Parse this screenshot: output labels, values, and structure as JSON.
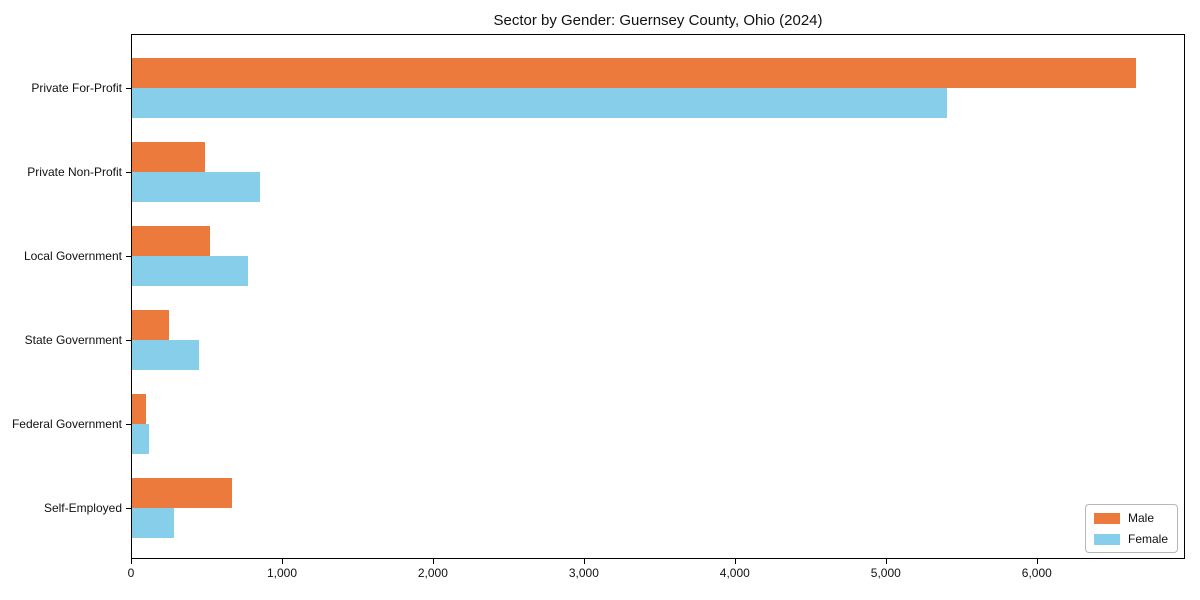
{
  "chart_data": {
    "type": "bar",
    "orientation": "horizontal",
    "title": "Sector by Gender: Guernsey County, Ohio (2024)",
    "categories": [
      "Private For-Profit",
      "Private Non-Profit",
      "Local Government",
      "State Government",
      "Federal Government",
      "Self-Employed"
    ],
    "series": [
      {
        "name": "Male",
        "color": "#EC7A3C",
        "values": [
          6650,
          485,
          515,
          245,
          95,
          660
        ]
      },
      {
        "name": "Female",
        "color": "#87CEEB",
        "values": [
          5400,
          845,
          770,
          445,
          110,
          280
        ]
      }
    ],
    "xlabel": "",
    "ylabel": "",
    "xlim": [
      0,
      6982
    ],
    "xticks": [
      0,
      1000,
      2000,
      3000,
      4000,
      5000,
      6000
    ],
    "xtick_labels": [
      "0",
      "1,000",
      "2,000",
      "3,000",
      "4,000",
      "5,000",
      "6,000"
    ],
    "grid": false,
    "legend_position": "lower right"
  },
  "colors": {
    "background": "#ffffff",
    "axis": "#000000",
    "text": "#111111",
    "legend_border": "#b7b7b7",
    "male": "#EC7A3C",
    "female": "#87CEEB"
  }
}
